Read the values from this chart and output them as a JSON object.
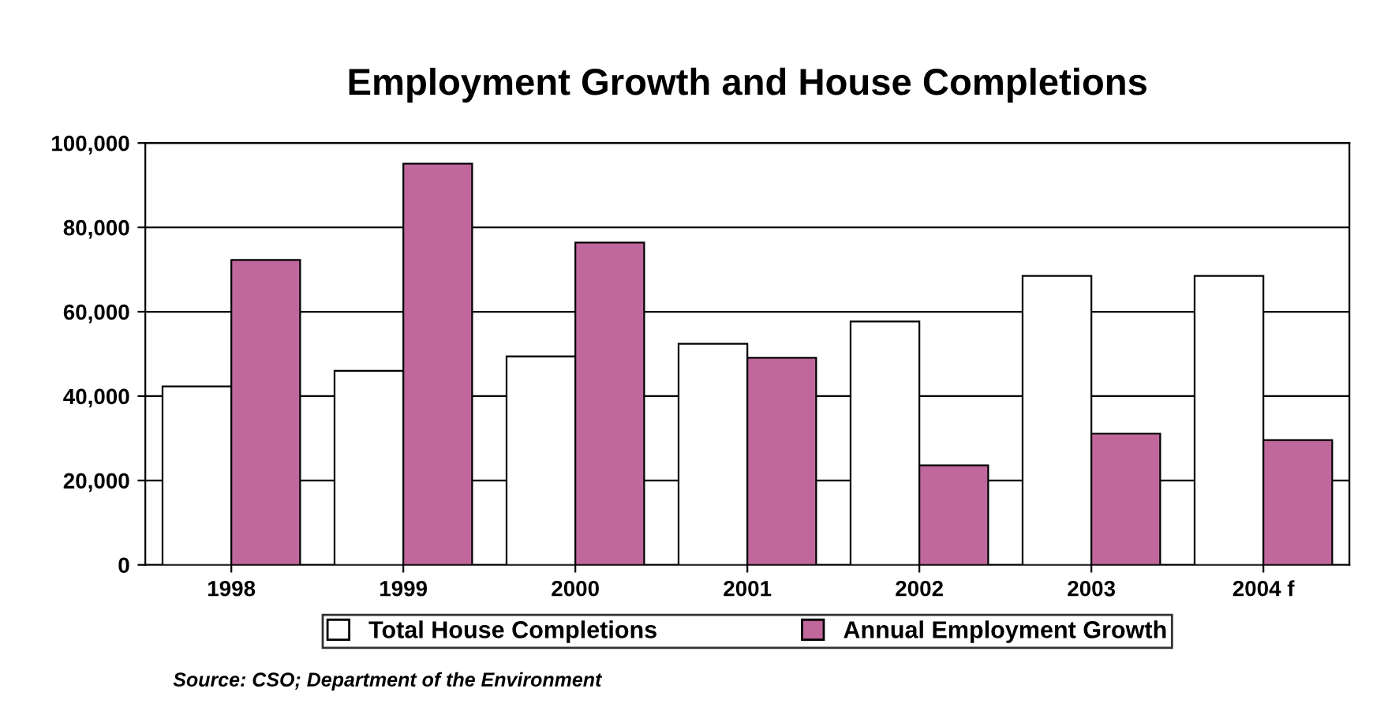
{
  "chart_data": {
    "type": "bar",
    "title": "Employment Growth and House Completions",
    "categories": [
      "1998",
      "1999",
      "2000",
      "2001",
      "2002",
      "2003",
      "2004 f"
    ],
    "series": [
      {
        "name": "Total House Completions",
        "color": "#ffffff",
        "values": [
          42300,
          46000,
          49400,
          52400,
          57700,
          68500,
          68500
        ]
      },
      {
        "name": "Annual Employment Growth",
        "color": "#c0679c",
        "values": [
          72300,
          95100,
          76400,
          49100,
          23600,
          31100,
          29600
        ]
      }
    ],
    "ylim": [
      0,
      100000
    ],
    "yticks": [
      {
        "value": 0,
        "label": "0"
      },
      {
        "value": 20000,
        "label": "20,000"
      },
      {
        "value": 40000,
        "label": "40,000"
      },
      {
        "value": 60000,
        "label": "60,000"
      },
      {
        "value": 80000,
        "label": "80,000"
      },
      {
        "value": 100000,
        "label": "100,000"
      }
    ],
    "grid": "y",
    "legend": "bottom",
    "annotations": [
      "Source: CSO; Department of the Environment"
    ]
  }
}
